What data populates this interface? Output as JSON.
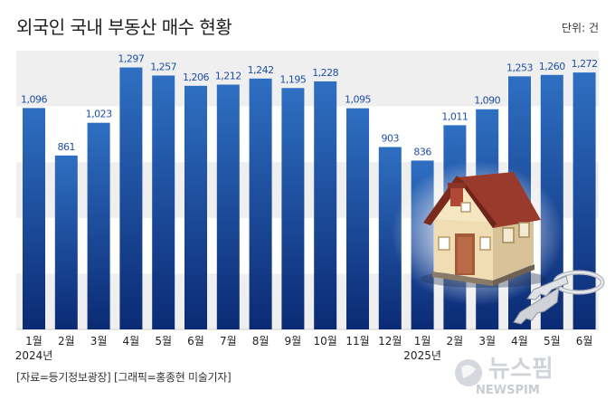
{
  "header": {
    "title": "외국인 국내 부동산 매수 현황",
    "unit": "단위: 건"
  },
  "footer": {
    "source": "[자료=등기정보광장] [그래픽=홍종현 미술기자]",
    "logo_text": "뉴스핌",
    "logo_sub": "NEWSPIM"
  },
  "colors": {
    "bar_top": "#2f6fc2",
    "bar_bottom": "#0b2a74",
    "band": "#efefef",
    "value_label": "#1f4fa5"
  },
  "chart_data": {
    "type": "bar",
    "title": "외국인 국내 부동산 매수 현황",
    "unit": "단위: 건",
    "categories": [
      "1월",
      "2월",
      "3월",
      "4월",
      "5월",
      "6월",
      "7월",
      "8월",
      "9월",
      "10월",
      "11월",
      "12월",
      "1월",
      "2월",
      "3월",
      "4월",
      "5월",
      "6월"
    ],
    "year_labels": [
      {
        "index": 0,
        "label": "2024년"
      },
      {
        "index": 12,
        "label": "2025년"
      }
    ],
    "values": [
      1096,
      861,
      1023,
      1297,
      1257,
      1206,
      1212,
      1242,
      1195,
      1228,
      1095,
      903,
      836,
      1011,
      1090,
      1253,
      1260,
      1272
    ],
    "value_labels": [
      "1,096",
      "861",
      "1,023",
      "1,297",
      "1,257",
      "1,206",
      "1,212",
      "1,242",
      "1,195",
      "1,228",
      "1,095",
      "903",
      "836",
      "1,011",
      "1,090",
      "1,253",
      "1,260",
      "1,272"
    ],
    "ylim": [
      0,
      1380
    ],
    "grid": "horizontal bands",
    "legend": "none"
  }
}
